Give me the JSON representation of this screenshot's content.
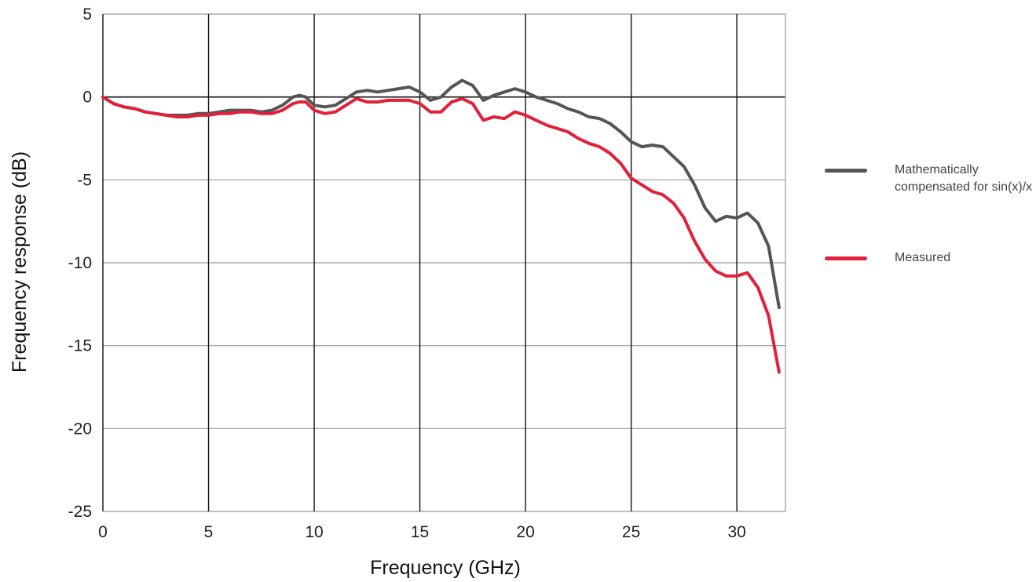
{
  "chart_data": {
    "type": "line",
    "title": "",
    "xlabel": "Frequency (GHz)",
    "ylabel": "Frequency response (dB)",
    "xlim": [
      0,
      32.3
    ],
    "ylim": [
      -25,
      5
    ],
    "xticks": [
      0,
      5,
      10,
      15,
      20,
      25,
      30
    ],
    "yticks": [
      5,
      0,
      -5,
      -10,
      -15,
      -20,
      -25
    ],
    "xtick_labels": [
      "0",
      "5",
      "10",
      "15",
      "20",
      "25",
      "30"
    ],
    "ytick_labels": [
      "5",
      "0",
      "-5",
      "-10",
      "-15",
      "-20",
      "-25"
    ],
    "grid": true,
    "legend_position": "right",
    "series": [
      {
        "name": "Mathematically compensated for sin(x)/x",
        "color": "#555555",
        "x": [
          0,
          0.5,
          1,
          1.5,
          2,
          2.5,
          3,
          3.5,
          4,
          4.5,
          5,
          5.5,
          6,
          6.5,
          7,
          7.5,
          8,
          8.5,
          9,
          9.3,
          9.6,
          10,
          10.5,
          11,
          11.5,
          12,
          12.5,
          13,
          13.5,
          14,
          14.5,
          15,
          15.5,
          16,
          16.5,
          17,
          17.5,
          18,
          18.5,
          19,
          19.5,
          20,
          20.5,
          21,
          21.5,
          22,
          22.5,
          23,
          23.5,
          24,
          24.5,
          25,
          25.5,
          26,
          26.5,
          27,
          27.5,
          28,
          28.5,
          29,
          29.5,
          30,
          30.5,
          31,
          31.5,
          32
        ],
        "y": [
          0,
          -0.4,
          -0.6,
          -0.7,
          -0.9,
          -1.0,
          -1.1,
          -1.1,
          -1.1,
          -1.0,
          -1.0,
          -0.9,
          -0.8,
          -0.8,
          -0.8,
          -0.9,
          -0.8,
          -0.5,
          0.0,
          0.1,
          0.0,
          -0.5,
          -0.6,
          -0.5,
          -0.1,
          0.3,
          0.4,
          0.3,
          0.4,
          0.5,
          0.6,
          0.3,
          -0.2,
          0.0,
          0.6,
          1.0,
          0.7,
          -0.2,
          0.1,
          0.3,
          0.5,
          0.3,
          0.0,
          -0.2,
          -0.4,
          -0.7,
          -0.9,
          -1.2,
          -1.3,
          -1.6,
          -2.1,
          -2.7,
          -3.0,
          -2.9,
          -3.0,
          -3.6,
          -4.2,
          -5.3,
          -6.7,
          -7.5,
          -7.2,
          -7.3,
          -7.0,
          -7.6,
          -9.0,
          -12.7
        ]
      },
      {
        "name": "Measured",
        "color": "#e2203a",
        "x": [
          0,
          0.5,
          1,
          1.5,
          2,
          2.5,
          3,
          3.5,
          4,
          4.5,
          5,
          5.5,
          6,
          6.5,
          7,
          7.5,
          8,
          8.5,
          9,
          9.3,
          9.6,
          10,
          10.5,
          11,
          11.5,
          12,
          12.5,
          13,
          13.5,
          14,
          14.5,
          15,
          15.5,
          16,
          16.5,
          17,
          17.5,
          18,
          18.5,
          19,
          19.5,
          20,
          20.5,
          21,
          21.5,
          22,
          22.5,
          23,
          23.5,
          24,
          24.5,
          25,
          25.5,
          26,
          26.5,
          27,
          27.5,
          28,
          28.5,
          29,
          29.5,
          30,
          30.5,
          31,
          31.5,
          32
        ],
        "y": [
          0,
          -0.4,
          -0.6,
          -0.7,
          -0.9,
          -1.0,
          -1.1,
          -1.2,
          -1.2,
          -1.1,
          -1.1,
          -1.0,
          -1.0,
          -0.9,
          -0.9,
          -1.0,
          -1.0,
          -0.8,
          -0.4,
          -0.3,
          -0.3,
          -0.8,
          -1.0,
          -0.9,
          -0.5,
          -0.1,
          -0.3,
          -0.3,
          -0.2,
          -0.2,
          -0.2,
          -0.4,
          -0.9,
          -0.9,
          -0.3,
          -0.1,
          -0.4,
          -1.4,
          -1.2,
          -1.3,
          -0.9,
          -1.1,
          -1.4,
          -1.7,
          -1.9,
          -2.1,
          -2.5,
          -2.8,
          -3.0,
          -3.4,
          -4.0,
          -4.9,
          -5.3,
          -5.7,
          -5.9,
          -6.4,
          -7.3,
          -8.7,
          -9.8,
          -10.5,
          -10.8,
          -10.8,
          -10.6,
          -11.5,
          -13.2,
          -16.6
        ]
      }
    ]
  }
}
